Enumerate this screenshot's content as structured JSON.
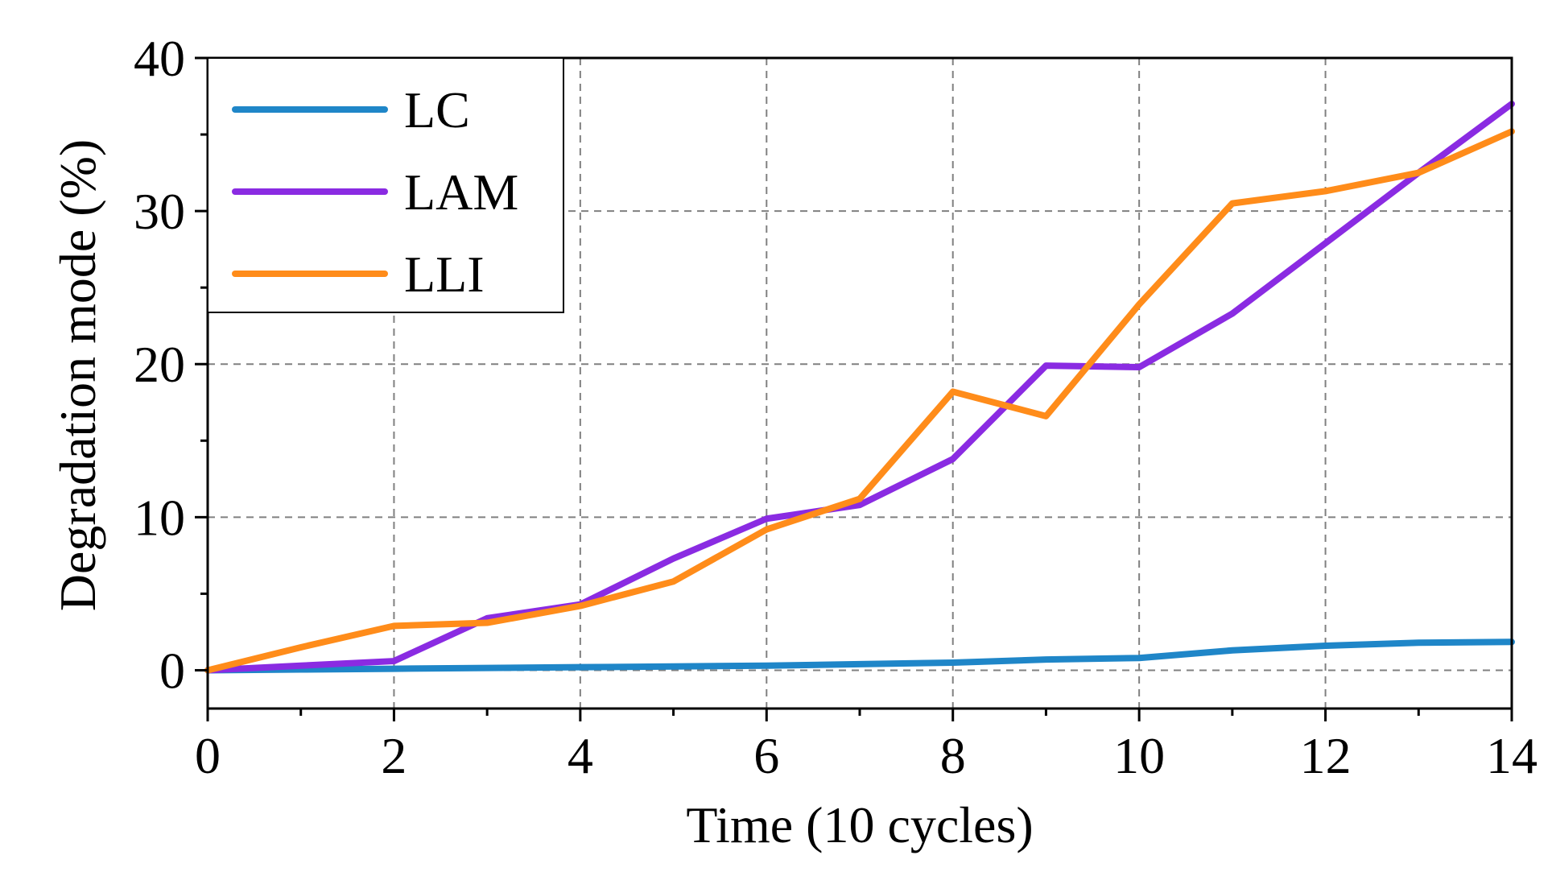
{
  "chart_data": {
    "type": "line",
    "title": "",
    "xlabel": "Time (10 cycles)",
    "ylabel": "Degradation mode (%)",
    "xlim": [
      0,
      14
    ],
    "ylim": [
      -2.5,
      40
    ],
    "x_ticks": [
      0,
      2,
      4,
      6,
      8,
      10,
      12,
      14
    ],
    "x_tick_labels": [
      "0",
      "2",
      "4",
      "6",
      "8",
      "10",
      "12",
      "14"
    ],
    "x_minor_ticks": [
      1,
      3,
      5,
      7,
      9,
      11,
      13
    ],
    "y_ticks": [
      0,
      10,
      20,
      30,
      40
    ],
    "y_tick_labels": [
      "0",
      "10",
      "20",
      "30",
      "40"
    ],
    "y_minor_ticks": [
      5,
      15,
      25,
      35
    ],
    "grid": true,
    "legend_position": "top-left",
    "x": [
      0,
      1,
      2,
      3,
      4,
      5,
      6,
      7,
      8,
      9,
      10,
      11,
      12,
      13,
      14
    ],
    "series": [
      {
        "name": "LC",
        "color": "#1f86c8",
        "values": [
          0,
          0.05,
          0.1,
          0.15,
          0.2,
          0.25,
          0.3,
          0.4,
          0.5,
          0.7,
          0.8,
          1.3,
          1.6,
          1.8,
          1.85
        ]
      },
      {
        "name": "LAM",
        "color": "#8a2be2",
        "values": [
          0,
          0.3,
          0.6,
          3.4,
          4.3,
          7.3,
          9.9,
          10.8,
          13.8,
          19.9,
          19.8,
          23.3,
          27.9,
          32.5,
          37.0
        ]
      },
      {
        "name": "LLI",
        "color": "#ff8c1a",
        "values": [
          0,
          1.5,
          2.9,
          3.1,
          4.2,
          5.8,
          9.2,
          11.2,
          18.2,
          16.6,
          23.9,
          30.5,
          31.3,
          32.5,
          35.2
        ]
      }
    ]
  }
}
